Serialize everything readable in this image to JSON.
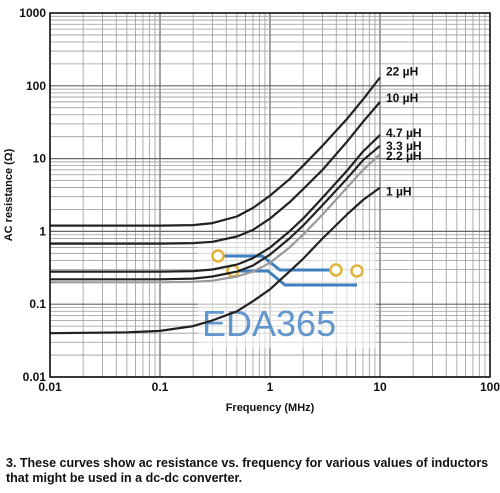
{
  "chart_data": {
    "type": "line",
    "xscale": "log",
    "yscale": "log",
    "xlim": [
      0.01,
      100
    ],
    "ylim": [
      0.01,
      1000
    ],
    "xlabel": "Frequency (MHz)",
    "ylabel": "AC resistance (Ω)",
    "x_ticks": [
      "0.01",
      "0.1",
      "1",
      "10",
      "100"
    ],
    "y_ticks": [
      "0.01",
      "0.1",
      "1",
      "10",
      "100",
      "1000"
    ],
    "grid": true,
    "series": [
      {
        "name": "22 µH",
        "x": [
          0.01,
          0.1,
          0.2,
          0.3,
          0.5,
          0.7,
          1,
          1.5,
          2,
          3,
          5,
          7,
          10
        ],
        "y": [
          1.2,
          1.2,
          1.22,
          1.3,
          1.6,
          2.1,
          3.1,
          5.2,
          8,
          15,
          35,
          65,
          130
        ]
      },
      {
        "name": "10 µH",
        "x": [
          0.01,
          0.1,
          0.2,
          0.3,
          0.5,
          0.7,
          1,
          1.5,
          2,
          3,
          5,
          7,
          10
        ],
        "y": [
          0.68,
          0.68,
          0.69,
          0.72,
          0.85,
          1.05,
          1.5,
          2.5,
          3.8,
          7,
          17,
          32,
          60
        ]
      },
      {
        "name": "4.7 µH",
        "x": [
          0.01,
          0.1,
          0.2,
          0.3,
          0.5,
          0.7,
          1,
          1.5,
          2,
          3,
          5,
          7,
          10
        ],
        "y": [
          0.28,
          0.28,
          0.285,
          0.3,
          0.35,
          0.43,
          0.6,
          1.0,
          1.5,
          2.9,
          6.8,
          12.5,
          21
        ]
      },
      {
        "name": "3.3 µH",
        "x": [
          0.01,
          0.1,
          0.2,
          0.3,
          0.5,
          0.7,
          1,
          1.5,
          2,
          3,
          5,
          7,
          10
        ],
        "y": [
          0.22,
          0.22,
          0.225,
          0.24,
          0.28,
          0.34,
          0.48,
          0.8,
          1.2,
          2.3,
          5.3,
          9.5,
          15
        ]
      },
      {
        "name": "2.2 µH",
        "x": [
          0.01,
          0.1,
          0.2,
          0.3,
          0.5,
          0.7,
          1,
          1.5,
          2,
          3,
          5,
          7,
          10
        ],
        "y": [
          0.2,
          0.2,
          0.203,
          0.21,
          0.24,
          0.28,
          0.37,
          0.6,
          0.9,
          1.7,
          4.0,
          7.0,
          11.5
        ]
      },
      {
        "name": "1 µH",
        "x": [
          0.01,
          0.05,
          0.1,
          0.2,
          0.3,
          0.5,
          0.7,
          1,
          1.5,
          2,
          3,
          5,
          7,
          10
        ],
        "y": [
          0.04,
          0.041,
          0.043,
          0.05,
          0.06,
          0.08,
          0.11,
          0.16,
          0.28,
          0.42,
          0.8,
          1.7,
          2.7,
          4.0
        ]
      }
    ]
  },
  "watermark": {
    "text": "EDA365",
    "color": "#4a86c5",
    "trace_color": "#3f7fc0",
    "pad_color": "#e0b43a"
  },
  "caption": "3. These curves show ac resistance vs. frequency for various values of inductors that might be used in a dc-dc converter."
}
